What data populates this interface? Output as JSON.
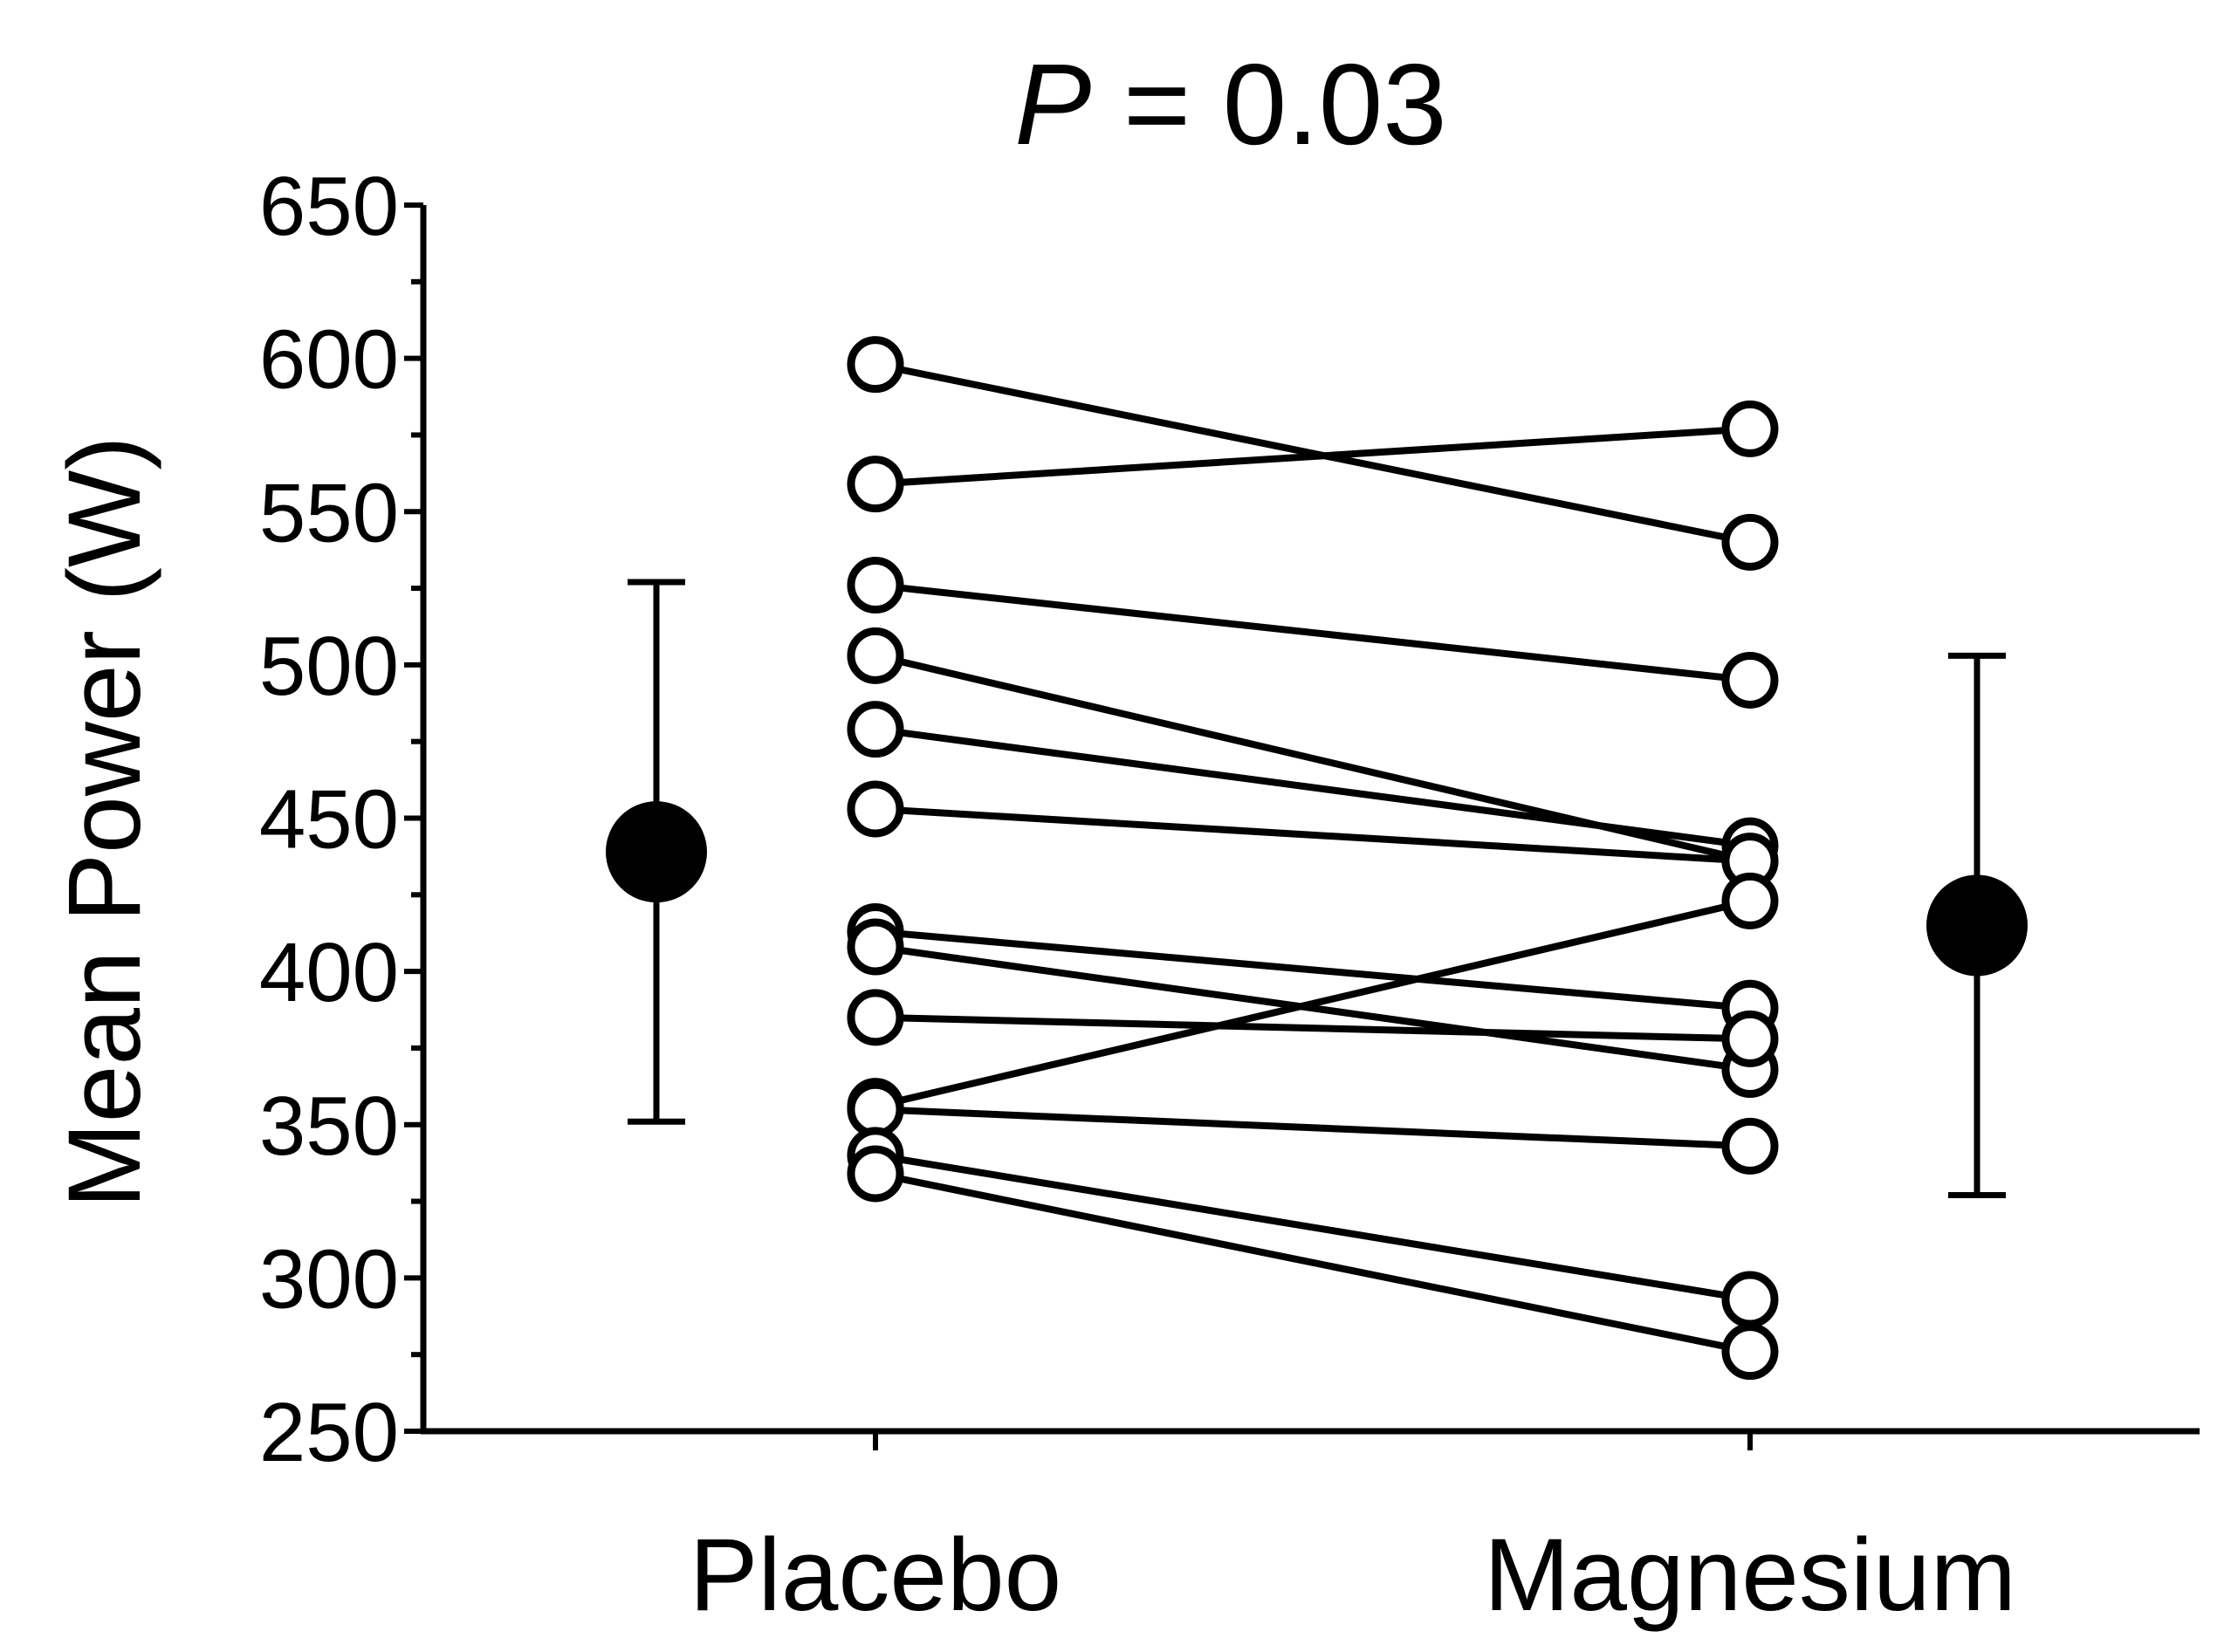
{
  "chart_data": {
    "type": "scatter",
    "title_italic": "P",
    "title_rest": " = 0.03",
    "ylabel": "Mean Power (W)",
    "ylim": [
      250,
      650
    ],
    "ytick_step": 50,
    "categories": [
      "Placebo",
      "Magnesium"
    ],
    "subjects": [
      {
        "placebo": 598,
        "magnesium": 540
      },
      {
        "placebo": 559,
        "magnesium": 577
      },
      {
        "placebo": 526,
        "magnesium": 495
      },
      {
        "placebo": 503,
        "magnesium": 436
      },
      {
        "placebo": 479,
        "magnesium": 441
      },
      {
        "placebo": 453,
        "magnesium": 436
      },
      {
        "placebo": 413,
        "magnesium": 388
      },
      {
        "placebo": 408,
        "magnesium": 368
      },
      {
        "placebo": 385,
        "magnesium": 378
      },
      {
        "placebo": 356,
        "magnesium": 423
      },
      {
        "placebo": 355,
        "magnesium": 343
      },
      {
        "placebo": 340,
        "magnesium": 293
      },
      {
        "placebo": 334,
        "magnesium": 276
      }
    ],
    "means": [
      {
        "group": "Placebo",
        "mean": 439,
        "sd_low": 351,
        "sd_high": 527
      },
      {
        "group": "Magnesium",
        "mean": 415,
        "sd_low": 327,
        "sd_high": 503
      }
    ]
  }
}
